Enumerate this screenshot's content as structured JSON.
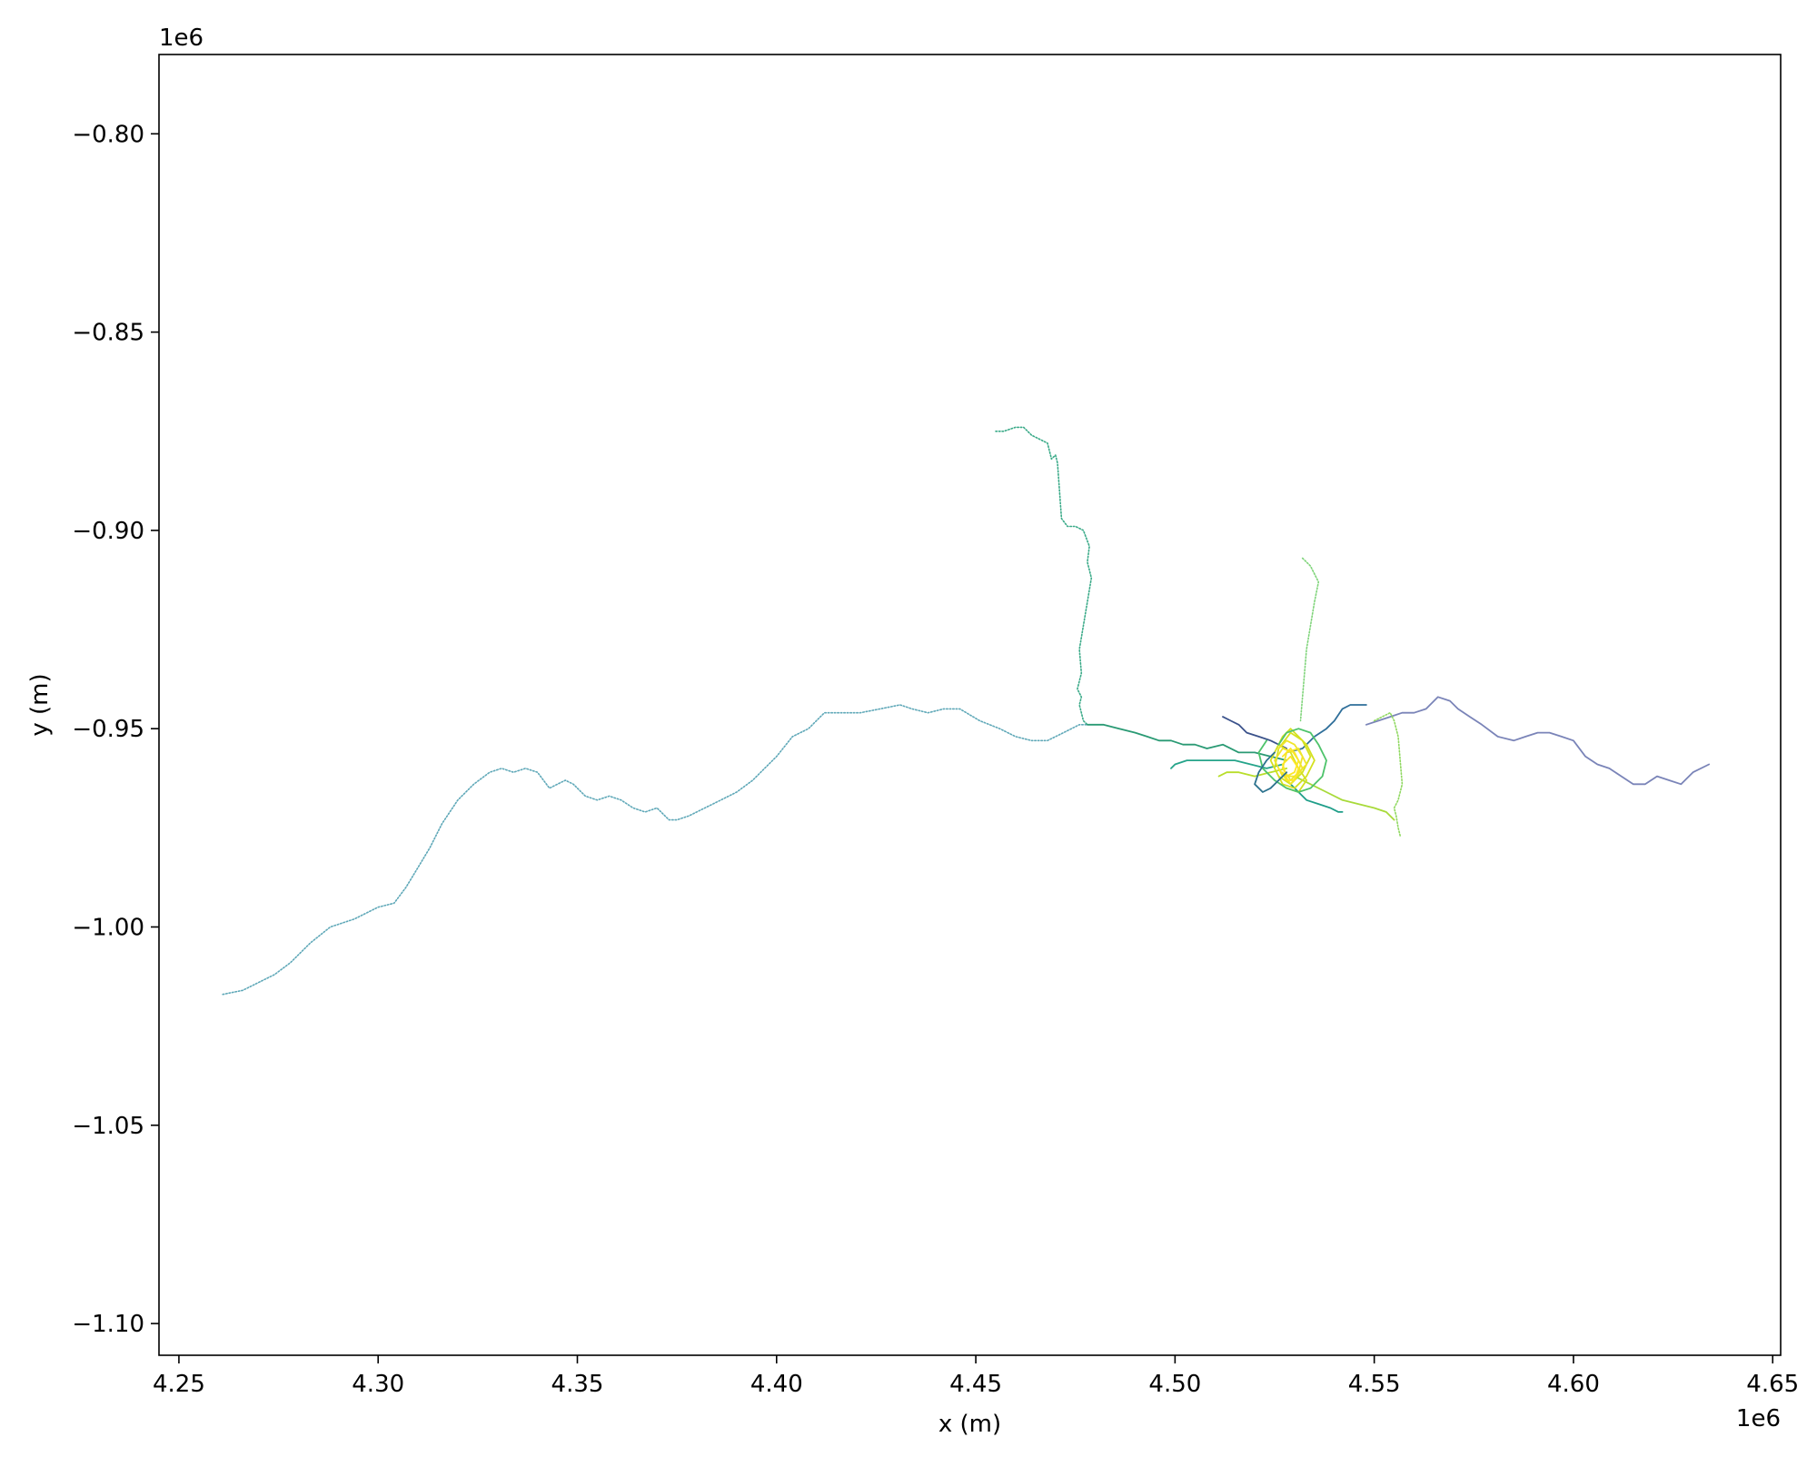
{
  "chart_data": {
    "type": "line",
    "title": "",
    "xlabel": "x (m)",
    "ylabel": "y (m)",
    "xlim": [
      4245000,
      4652000
    ],
    "ylim": [
      -1108000,
      -780000
    ],
    "x_offset_label": "1e6",
    "y_offset_label": "1e6",
    "x_ticks": [
      {
        "value": 4250000,
        "label": "4.25"
      },
      {
        "value": 4300000,
        "label": "4.30"
      },
      {
        "value": 4350000,
        "label": "4.35"
      },
      {
        "value": 4400000,
        "label": "4.40"
      },
      {
        "value": 4450000,
        "label": "4.45"
      },
      {
        "value": 4500000,
        "label": "4.50"
      },
      {
        "value": 4550000,
        "label": "4.55"
      },
      {
        "value": 4600000,
        "label": "4.60"
      },
      {
        "value": 4650000,
        "label": "4.65"
      }
    ],
    "y_ticks": [
      {
        "value": -800000,
        "label": "−0.80"
      },
      {
        "value": -850000,
        "label": "−0.85"
      },
      {
        "value": -900000,
        "label": "−0.90"
      },
      {
        "value": -950000,
        "label": "−0.95"
      },
      {
        "value": -1000000,
        "label": "−1.00"
      },
      {
        "value": -1050000,
        "label": "−1.05"
      },
      {
        "value": -1100000,
        "label": "−1.10"
      }
    ],
    "grid": false,
    "legend": "none",
    "colormap": "viridis",
    "series": [
      {
        "color": "#5fa8b8",
        "style": "dotted",
        "x": [
          4261000,
          4266000,
          4270000,
          4274000,
          4278000,
          4283000,
          4288000,
          4294000,
          4300000,
          4304000,
          4307000,
          4310000,
          4313000,
          4316000,
          4320000,
          4324000,
          4328000,
          4331000,
          4334000,
          4337000,
          4340000,
          4343000,
          4345000,
          4347000,
          4349000,
          4352000,
          4355000,
          4358000,
          4361000,
          4364000,
          4367000,
          4370000,
          4373000,
          4375000,
          4378000,
          4382000,
          4386000,
          4390000,
          4394000,
          4397000,
          4400000,
          4404000,
          4408000,
          4412000,
          4416000,
          4421000,
          4426000,
          4431000,
          4434000,
          4438000,
          4442000,
          4446000,
          4451000,
          4456000,
          4460000,
          4464000,
          4468000,
          4472000,
          4476000,
          4478000
        ],
        "y": [
          -1017000,
          -1016000,
          -1014000,
          -1012000,
          -1009000,
          -1004000,
          -1000000,
          -998000,
          -995000,
          -994000,
          -990000,
          -985000,
          -980000,
          -974000,
          -968000,
          -964000,
          -961000,
          -960000,
          -961000,
          -960000,
          -961000,
          -965000,
          -964000,
          -963000,
          -964000,
          -967000,
          -968000,
          -967000,
          -968000,
          -970000,
          -971000,
          -970000,
          -973000,
          -973000,
          -972000,
          -970000,
          -968000,
          -966000,
          -963000,
          -960000,
          -957000,
          -952000,
          -950000,
          -946000,
          -946000,
          -946000,
          -945000,
          -944000,
          -945000,
          -946000,
          -945000,
          -945000,
          -948000,
          -950000,
          -952000,
          -953000,
          -953000,
          -951000,
          -949000,
          -949000
        ]
      },
      {
        "color": "#3aaa88",
        "style": "dotted",
        "x": [
          4455000,
          4457000,
          4460000,
          4462000,
          4464000,
          4466000,
          4468000,
          4469000,
          4470000,
          4470500,
          4471000,
          4471500,
          4473000,
          4474000,
          4475000,
          4477000,
          4478500,
          4478000,
          4479000,
          4478000,
          4477000,
          4476000,
          4476500,
          4475500,
          4476500,
          4476000,
          4476500,
          4477000,
          4478000
        ],
        "y": [
          -875000,
          -875000,
          -874000,
          -874000,
          -876000,
          -877000,
          -878000,
          -882000,
          -881000,
          -883000,
          -890000,
          -897000,
          -899000,
          -899000,
          -899000,
          -900000,
          -904000,
          -908000,
          -912000,
          -918000,
          -924000,
          -930000,
          -936000,
          -940000,
          -942000,
          -944000,
          -946000,
          -948000,
          -949000
        ]
      },
      {
        "color": "#2a9a74",
        "style": "solid",
        "x": [
          4478000,
          4482000,
          4486000,
          4490000,
          4493000,
          4496000,
          4499000,
          4502000,
          4505000,
          4508000,
          4512000,
          4516000,
          4520000,
          4524000,
          4528000
        ],
        "y": [
          -949000,
          -949000,
          -950000,
          -951000,
          -952000,
          -953000,
          -953000,
          -954000,
          -954000,
          -955000,
          -954000,
          -956000,
          -956000,
          -957000,
          -958000
        ]
      },
      {
        "color": "#7a84b8",
        "style": "solid",
        "x": [
          4548000,
          4551000,
          4554000,
          4557000,
          4560000,
          4563000,
          4566000,
          4569000,
          4571000,
          4574000,
          4577000,
          4581000,
          4585000,
          4588000,
          4591000,
          4594000,
          4597000,
          4600000,
          4603000,
          4606000,
          4609000,
          4612000,
          4615000,
          4618000,
          4621000,
          4624000,
          4627000,
          4630000,
          4634000
        ],
        "y": [
          -949000,
          -948000,
          -947000,
          -946000,
          -946000,
          -945000,
          -942000,
          -943000,
          -945000,
          -947000,
          -949000,
          -952000,
          -953000,
          -952000,
          -951000,
          -951000,
          -952000,
          -953000,
          -957000,
          -959000,
          -960000,
          -962000,
          -964000,
          -964000,
          -962000,
          -963000,
          -964000,
          -961000,
          -959000
        ]
      },
      {
        "color": "#2f6f9a",
        "style": "solid",
        "x": [
          4528000,
          4532000,
          4535000,
          4538000,
          4540000,
          4542000,
          4544000,
          4546000,
          4548000
        ],
        "y": [
          -956000,
          -955000,
          -952000,
          -950000,
          -948000,
          -945000,
          -944000,
          -944000,
          -944000
        ]
      },
      {
        "color": "#7fd47a",
        "style": "dotted",
        "x": [
          4532000,
          4533000,
          4534000,
          4535000,
          4536000,
          4535000,
          4534000,
          4533000,
          4532500,
          4532000,
          4531500
        ],
        "y": [
          -907000,
          -908000,
          -909000,
          -911000,
          -913000,
          -918000,
          -924000,
          -930000,
          -936000,
          -942000,
          -948000
        ]
      },
      {
        "color": "#8fd860",
        "style": "dotted",
        "x": [
          4550000,
          4552000,
          4554000,
          4555000,
          4556000,
          4556500,
          4557000,
          4556000,
          4555000,
          4555500,
          4556000,
          4556500
        ],
        "y": [
          -948000,
          -947000,
          -946000,
          -948000,
          -952000,
          -958000,
          -964000,
          -968000,
          -970000,
          -972000,
          -975000,
          -977000
        ]
      },
      {
        "color": "#a8da3a",
        "style": "solid",
        "x": [
          4530000,
          4534000,
          4538000,
          4542000,
          4546000,
          4550000,
          4553000,
          4555000
        ],
        "y": [
          -962000,
          -964000,
          -966000,
          -968000,
          -969000,
          -970000,
          -971000,
          -973000
        ]
      },
      {
        "color": "#25a48a",
        "style": "solid",
        "x": [
          4527000,
          4523000,
          4519000,
          4515000,
          4511000,
          4507000,
          4503000,
          4500000,
          4499000
        ],
        "y": [
          -959000,
          -960000,
          -959000,
          -958000,
          -958000,
          -958000,
          -958000,
          -959000,
          -960000
        ]
      },
      {
        "color": "#b8de2a",
        "style": "solid",
        "x": [
          4528000,
          4524000,
          4520000,
          4516000,
          4513000,
          4511000
        ],
        "y": [
          -960000,
          -961000,
          -962000,
          -961000,
          -961000,
          -962000
        ]
      },
      {
        "color": "#3b528b",
        "style": "solid",
        "x": [
          4528000,
          4524000,
          4521000,
          4518000,
          4516000,
          4514000,
          4512000
        ],
        "y": [
          -955000,
          -953000,
          -952000,
          -951000,
          -949000,
          -948000,
          -947000
        ]
      },
      {
        "color": "#1f9e89",
        "style": "solid",
        "x": [
          4529000,
          4531000,
          4533000,
          4536000,
          4539000,
          4541000,
          4542000
        ],
        "y": [
          -964000,
          -966000,
          -968000,
          -969000,
          -970000,
          -971000,
          -971000
        ]
      },
      {
        "color": "#d4e120",
        "style": "solid",
        "x": [
          4524000,
          4527000,
          4529000,
          4531000,
          4533000,
          4535000,
          4533000,
          4530000,
          4527000,
          4525000,
          4526000,
          4529000,
          4532000,
          4534000,
          4532000,
          4529000,
          4526000,
          4524000,
          4526000,
          4529000,
          4531000,
          4533000,
          4531000,
          4528000
        ],
        "y": [
          -958000,
          -952000,
          -950000,
          -952000,
          -954000,
          -958000,
          -962000,
          -965000,
          -964000,
          -960000,
          -955000,
          -951000,
          -953000,
          -957000,
          -961000,
          -964000,
          -962000,
          -958000,
          -954000,
          -956000,
          -960000,
          -963000,
          -966000,
          -965000
        ]
      },
      {
        "color": "#f0e52a",
        "style": "solid",
        "x": [
          4526000,
          4528000,
          4530000,
          4532000,
          4531000,
          4529000,
          4527000,
          4528000,
          4531000,
          4533000,
          4530000,
          4527000,
          4525000,
          4527000,
          4530000,
          4532000,
          4529000,
          4527000
        ],
        "y": [
          -955000,
          -953000,
          -954000,
          -957000,
          -961000,
          -963000,
          -960000,
          -956000,
          -955000,
          -959000,
          -962000,
          -962000,
          -958000,
          -955000,
          -956000,
          -960000,
          -964000,
          -961000
        ]
      },
      {
        "color": "#fde725",
        "style": "solid",
        "x": [
          4527000,
          4529000,
          4531000,
          4530000,
          4528000,
          4527000,
          4529000,
          4531000,
          4530000,
          4528000,
          4526000
        ],
        "y": [
          -957000,
          -955000,
          -958000,
          -961000,
          -962000,
          -959000,
          -957000,
          -960000,
          -963000,
          -963000,
          -960000
        ]
      },
      {
        "color": "#4ec36b",
        "style": "solid",
        "x": [
          4526000,
          4528000,
          4531000,
          4534000,
          4536000,
          4538000,
          4537000,
          4534000,
          4531000,
          4528000,
          4525000,
          4522000,
          4521000,
          4523000
        ],
        "y": [
          -954000,
          -951000,
          -950000,
          -951000,
          -954000,
          -958000,
          -962000,
          -965000,
          -966000,
          -965000,
          -963000,
          -960000,
          -956000,
          -953000
        ]
      },
      {
        "color": "#2c728e",
        "style": "solid",
        "x": [
          4525000,
          4523000,
          4521000,
          4520000,
          4522000,
          4524000,
          4526000,
          4528000
        ],
        "y": [
          -956000,
          -958000,
          -961000,
          -964000,
          -966000,
          -965000,
          -963000,
          -961000
        ]
      }
    ]
  }
}
